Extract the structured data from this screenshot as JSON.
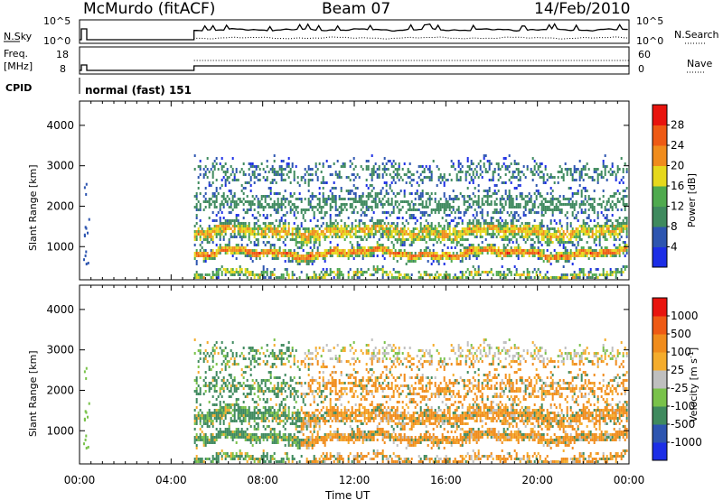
{
  "header": {
    "station": "McMurdo (fitACF)",
    "beam": "Beam 07",
    "date": "14/Feb/2010"
  },
  "param_panels": {
    "nsky": {
      "left_label": "N.Sky",
      "left_ticks": [
        "10^5",
        "10^0"
      ],
      "right_ticks": [
        "10^5",
        "10^0"
      ],
      "right_label": "N.Search"
    },
    "freq": {
      "left_label_1": "Freq.",
      "left_label_2": "[MHz]",
      "left_ticks": [
        "18",
        "8"
      ],
      "right_ticks": [
        "60",
        "0"
      ],
      "right_label": "Nave"
    },
    "cpid": {
      "label": "CPID",
      "value": "normal (fast) 151"
    }
  },
  "chart_data": [
    {
      "type": "heatmap",
      "ylabel": "Slant Range [km]",
      "xlabel": "Time UT",
      "x_ticks": [
        "00:00",
        "04:00",
        "08:00",
        "12:00",
        "16:00",
        "20:00",
        "00:00"
      ],
      "y_ticks": [
        1000,
        2000,
        3000,
        4000
      ],
      "ylim": [
        180,
        4600
      ],
      "colorbar": {
        "label": "Power [dB]",
        "ticks": [
          4,
          8,
          12,
          16,
          20,
          24,
          28
        ],
        "range": [
          0,
          32
        ],
        "colors": [
          "#1c2ee6",
          "#2d55b0",
          "#3f8a5e",
          "#4faa4e",
          "#e6d81c",
          "#f08c1c",
          "#ee5a14",
          "#e8140e"
        ]
      }
    },
    {
      "type": "heatmap",
      "ylabel": "Slant Range [km]",
      "xlabel": "Time UT",
      "x_ticks": [
        "00:00",
        "04:00",
        "08:00",
        "12:00",
        "16:00",
        "20:00",
        "00:00"
      ],
      "y_ticks": [
        1000,
        2000,
        3000,
        4000
      ],
      "ylim": [
        180,
        4600
      ],
      "colorbar": {
        "label": "Velocity [m s^-1]",
        "ticks": [
          "1000",
          "500",
          "100",
          "25",
          "-25",
          "-100",
          "-500",
          "-1000"
        ],
        "colors": [
          "#1c2ee6",
          "#2d55b0",
          "#3f8a5e",
          "#79c24a",
          "#bfbfbf",
          "#f4ac2c",
          "#f08c1c",
          "#ee5a14",
          "#e8140e"
        ]
      }
    }
  ],
  "time_axis_label": "Time UT"
}
